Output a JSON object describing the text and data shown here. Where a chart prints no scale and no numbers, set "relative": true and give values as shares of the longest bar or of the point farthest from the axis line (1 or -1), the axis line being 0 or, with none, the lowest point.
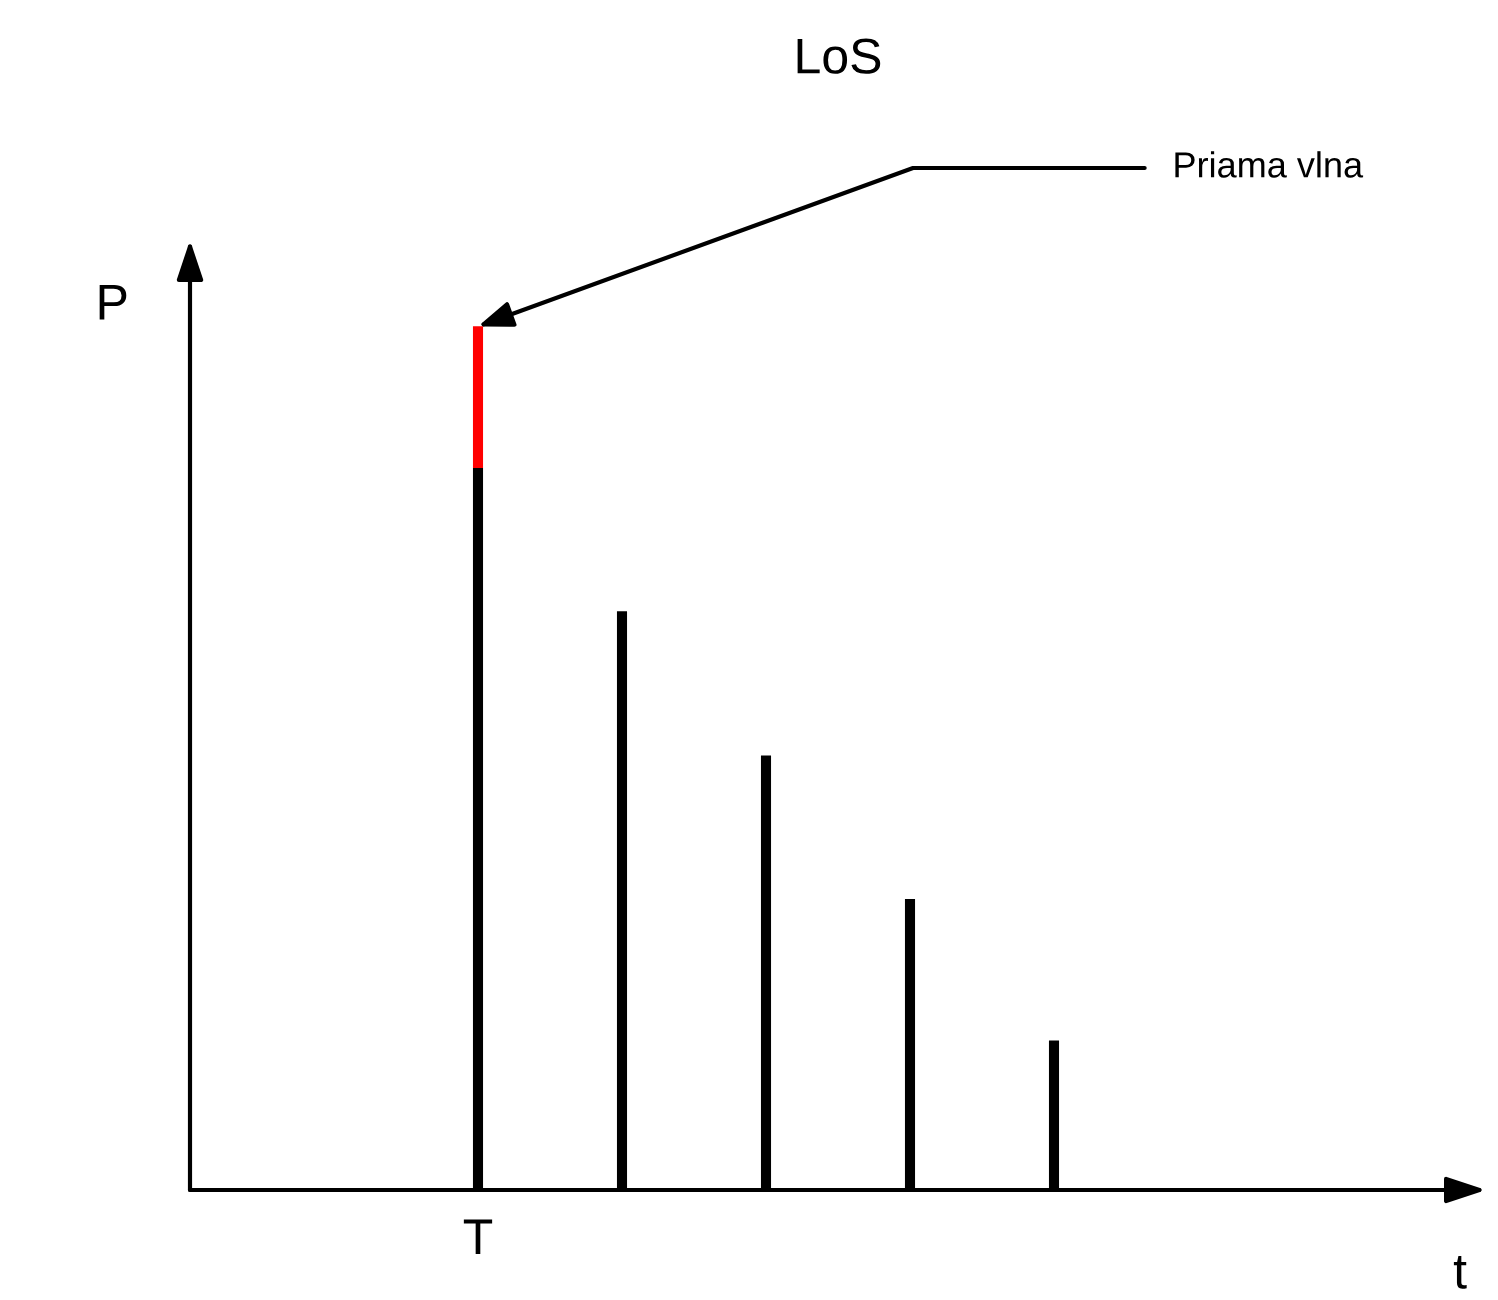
{
  "chart_data": {
    "type": "bar",
    "title": "LoS",
    "relative": true,
    "stacked": true,
    "grid": false,
    "legend": false,
    "categories": [
      "T",
      null,
      null,
      null,
      null
    ],
    "series": [
      {
        "color": "#000000",
        "values": [
          0.836,
          0.67,
          0.503,
          0.337,
          0.173
        ]
      },
      {
        "color": "#ff0000",
        "values": [
          0.164,
          null,
          null,
          null,
          null
        ]
      }
    ],
    "annotations": [
      {
        "text": "Priama vlna",
        "x": "T",
        "y": 1
      },
      "P",
      "t"
    ]
  }
}
